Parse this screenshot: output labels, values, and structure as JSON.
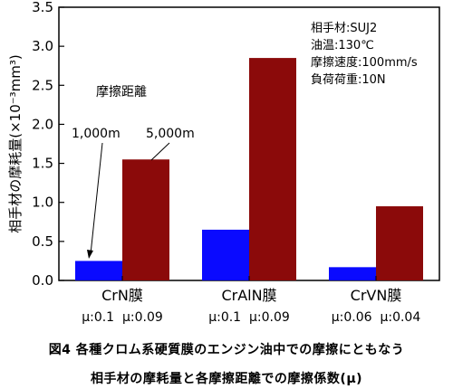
{
  "chart_data": {
    "type": "bar",
    "categories": [
      "CrN膜",
      "CrAlN膜",
      "CrVN膜"
    ],
    "friction_labels": [
      "μ:0.1  μ:0.09",
      "μ:0.1  μ:0.09",
      "μ:0.06  μ:0.04"
    ],
    "series": [
      {
        "name": "1,000m",
        "values": [
          0.25,
          0.65,
          0.17
        ],
        "color": "#0a0aff"
      },
      {
        "name": "5,000m",
        "values": [
          1.55,
          2.85,
          0.95
        ],
        "color": "#8b0a0a"
      }
    ],
    "ylabel": "相手材の摩耗量(×10⁻³mm³)",
    "ylim": [
      0,
      3.5
    ],
    "yticks": [
      "0.0",
      "0.5",
      "1.0",
      "1.5",
      "2.0",
      "2.5",
      "3.0",
      "3.5"
    ],
    "legend_title": "摩擦距離",
    "conditions": [
      "相手材:SUJ2",
      "油温:130℃",
      "摩擦速度:100mm/s",
      "負荷荷重:10N"
    ],
    "grid": false
  },
  "caption": {
    "line1": "図4  各種クロム系硬質膜のエンジン油中での摩擦にともなう",
    "line2": "相手材の摩耗量と各摩擦距離での摩擦係数(μ)"
  },
  "colors": {
    "blue": "#0a0aff",
    "darkred": "#8b0a0a"
  }
}
